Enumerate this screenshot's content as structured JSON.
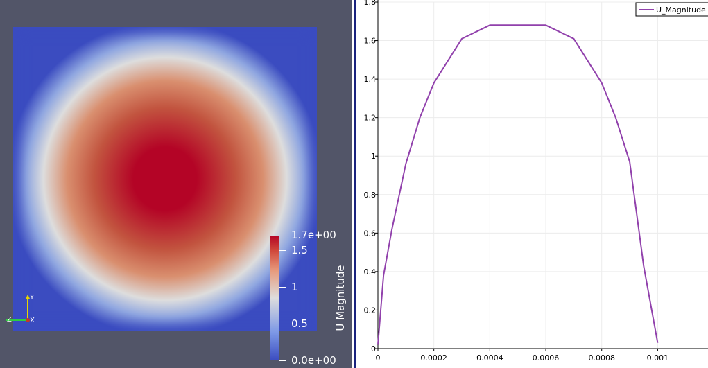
{
  "render_view": {
    "background_color": "#525568",
    "field_name": "U_Magnitude",
    "colormap": [
      "#3b4cc0",
      "#dddddd",
      "#b40426"
    ],
    "colorbar": {
      "title": "U Magnitude",
      "max_label": "1.7e+00",
      "min_label": "0.0e+00",
      "range": [
        0,
        1.7
      ],
      "ticks": [
        {
          "value": 1.5,
          "label": "1.5"
        },
        {
          "value": 1.0,
          "label": "1"
        },
        {
          "value": 0.5,
          "label": "0.5"
        }
      ]
    },
    "orientation_axes": {
      "x": "X",
      "y": "Y",
      "z": "Z"
    }
  },
  "chart_data": {
    "type": "line",
    "xlim": [
      0,
      0.00118
    ],
    "ylim": [
      0,
      1.8
    ],
    "grid": true,
    "legend_position": "top-right",
    "x_ticks": [
      {
        "value": 0,
        "label": "0"
      },
      {
        "value": 0.0002,
        "label": "0.0002"
      },
      {
        "value": 0.0004,
        "label": "0.0004"
      },
      {
        "value": 0.0006,
        "label": "0.0006"
      },
      {
        "value": 0.0008,
        "label": "0.0008"
      },
      {
        "value": 0.001,
        "label": "0.001"
      }
    ],
    "y_ticks": [
      {
        "value": 0,
        "label": "0"
      },
      {
        "value": 0.2,
        "label": "0.2"
      },
      {
        "value": 0.4,
        "label": "0.4"
      },
      {
        "value": 0.6,
        "label": "0.6"
      },
      {
        "value": 0.8,
        "label": "0.8"
      },
      {
        "value": 1.0,
        "label": "1"
      },
      {
        "value": 1.2,
        "label": "1.2"
      },
      {
        "value": 1.4,
        "label": "1.4"
      },
      {
        "value": 1.6,
        "label": "1.6"
      },
      {
        "value": 1.8,
        "label": "1.8"
      }
    ],
    "series": [
      {
        "name": "U_Magnitude",
        "color": "#9141ac",
        "x": [
          0,
          2e-05,
          5e-05,
          0.0001,
          0.00015,
          0.0002,
          0.0003,
          0.0004,
          0.0005,
          0.0006,
          0.0007,
          0.0008,
          0.00085,
          0.0009,
          0.00095,
          0.001
        ],
        "y": [
          0.02,
          0.38,
          0.62,
          0.96,
          1.2,
          1.38,
          1.61,
          1.68,
          1.68,
          1.68,
          1.61,
          1.38,
          1.2,
          0.97,
          0.43,
          0.03
        ]
      }
    ]
  }
}
